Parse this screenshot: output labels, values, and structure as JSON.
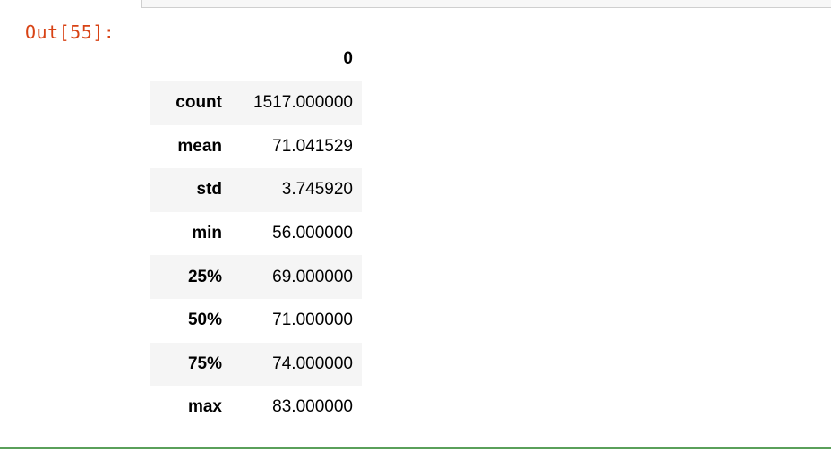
{
  "output_prompt": "Out[55]:",
  "table": {
    "column_header": "0",
    "rows": [
      {
        "label": "count",
        "value": "1517.000000"
      },
      {
        "label": "mean",
        "value": "71.041529"
      },
      {
        "label": "std",
        "value": "3.745920"
      },
      {
        "label": "min",
        "value": "56.000000"
      },
      {
        "label": "25%",
        "value": "69.000000"
      },
      {
        "label": "50%",
        "value": "71.000000"
      },
      {
        "label": "75%",
        "value": "74.000000"
      },
      {
        "label": "max",
        "value": "83.000000"
      }
    ]
  },
  "colors": {
    "prompt": "#d84315",
    "cell_border": "#5aa05a",
    "stripe": "#f5f5f5"
  }
}
